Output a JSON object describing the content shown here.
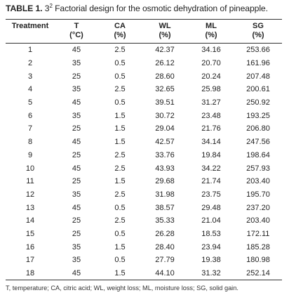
{
  "caption": {
    "label": "TABLE 1.",
    "pre_sup": " 3",
    "sup": "2",
    "text": " Factorial design for the osmotic dehydration of pineapple."
  },
  "table": {
    "headers": [
      {
        "name": "Treatment",
        "unit": ""
      },
      {
        "name": "T",
        "unit": "(°C)"
      },
      {
        "name": "CA",
        "unit": "(%)"
      },
      {
        "name": "WL",
        "unit": "(%)"
      },
      {
        "name": "ML",
        "unit": "(%)"
      },
      {
        "name": "SG",
        "unit": "(%)"
      }
    ],
    "rows": [
      [
        "1",
        "45",
        "2.5",
        "42.37",
        "34.16",
        "253.66"
      ],
      [
        "2",
        "35",
        "0.5",
        "26.12",
        "20.70",
        "161.96"
      ],
      [
        "3",
        "25",
        "0.5",
        "28.60",
        "20.24",
        "207.48"
      ],
      [
        "4",
        "35",
        "2.5",
        "32.65",
        "25.98",
        "200.61"
      ],
      [
        "5",
        "45",
        "0.5",
        "39.51",
        "31.27",
        "250.92"
      ],
      [
        "6",
        "35",
        "1.5",
        "30.72",
        "23.48",
        "193.25"
      ],
      [
        "7",
        "25",
        "1.5",
        "29.04",
        "21.76",
        "206.80"
      ],
      [
        "8",
        "45",
        "1.5",
        "42.57",
        "34.14",
        "247.56"
      ],
      [
        "9",
        "25",
        "2.5",
        "33.76",
        "19.84",
        "198.64"
      ],
      [
        "10",
        "45",
        "2.5",
        "43.93",
        "34.22",
        "257.93"
      ],
      [
        "11",
        "25",
        "1.5",
        "29.68",
        "21.74",
        "203.40"
      ],
      [
        "12",
        "35",
        "2.5",
        "31.98",
        "23.75",
        "195.70"
      ],
      [
        "13",
        "45",
        "0.5",
        "38.57",
        "29.48",
        "237.20"
      ],
      [
        "14",
        "25",
        "2.5",
        "35.33",
        "21.04",
        "203.40"
      ],
      [
        "15",
        "25",
        "0.5",
        "26.28",
        "18.53",
        "172.11"
      ],
      [
        "16",
        "35",
        "1.5",
        "28.40",
        "23.94",
        "185.28"
      ],
      [
        "17",
        "35",
        "0.5",
        "27.79",
        "19.38",
        "180.98"
      ],
      [
        "18",
        "45",
        "1.5",
        "44.10",
        "31.32",
        "252.14"
      ]
    ]
  },
  "footnote": "T, temperature; CA, citric acid; WL, weight loss; ML, moisture loss; SG, solid gain."
}
